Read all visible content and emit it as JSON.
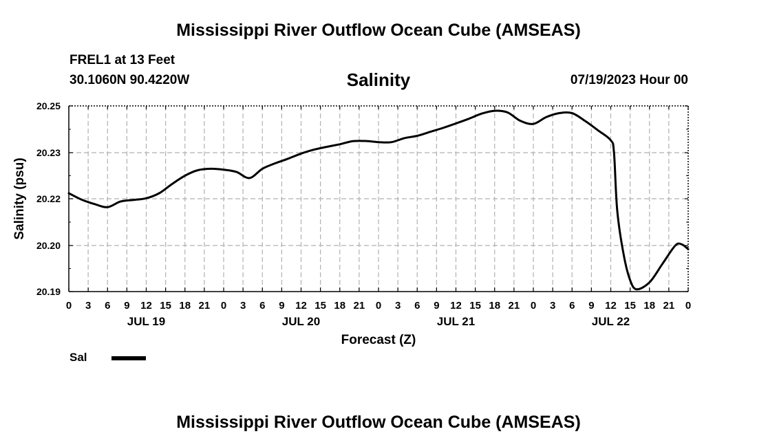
{
  "header": {
    "title": "Mississippi River Outflow Ocean Cube (AMSEAS)",
    "station": "FREL1 at 13 Feet",
    "coords": "30.1060N  90.4220W",
    "variable": "Salinity",
    "run": "07/19/2023 Hour 00"
  },
  "footer": {
    "title": "Mississippi River Outflow Ocean Cube (AMSEAS)"
  },
  "legend": {
    "label": "Sal"
  },
  "chart_data": {
    "type": "line",
    "title": "Salinity",
    "xlabel": "Forecast (Z)",
    "ylabel": "Salinity (psu)",
    "ylim": [
      20.19,
      20.25
    ],
    "y_ticks": [
      20.19,
      20.2,
      20.22,
      20.23,
      20.25
    ],
    "y_tick_labels": [
      "20.19",
      "20.20",
      "20.22",
      "20.23",
      "20.25"
    ],
    "x_range_hours": [
      0,
      96
    ],
    "x_tick_labels": [
      "0",
      "3",
      "6",
      "9",
      "12",
      "15",
      "18",
      "21",
      "0",
      "3",
      "6",
      "9",
      "12",
      "15",
      "18",
      "21",
      "0",
      "3",
      "6",
      "9",
      "12",
      "15",
      "18",
      "21",
      "0",
      "3",
      "6",
      "9",
      "12",
      "15",
      "18",
      "21",
      "0"
    ],
    "day_labels": [
      {
        "label": "JUL 19",
        "hour": 12
      },
      {
        "label": "JUL 20",
        "hour": 36
      },
      {
        "label": "JUL 21",
        "hour": 60
      },
      {
        "label": "JUL 22",
        "hour": 84
      }
    ],
    "grid": true,
    "series": [
      {
        "name": "Sal",
        "color": "#000000",
        "x": [
          0,
          2,
          4,
          6,
          8,
          10,
          12,
          14,
          16,
          18,
          20,
          22,
          24,
          26,
          28,
          30,
          32,
          34,
          36,
          38,
          40,
          42,
          44,
          46,
          48,
          50,
          52,
          54,
          56,
          58,
          60,
          62,
          64,
          66,
          68,
          70,
          72,
          74,
          76,
          78,
          80,
          82,
          84,
          84.5,
          85,
          86,
          87,
          88,
          90,
          92,
          94,
          95,
          96
        ],
        "y": [
          20.2212,
          20.2196,
          20.2177,
          20.2164,
          20.2188,
          20.2195,
          20.2201,
          20.2212,
          20.2232,
          20.225,
          20.2262,
          20.2265,
          20.2263,
          20.2258,
          20.2245,
          20.2265,
          20.2277,
          20.2287,
          20.2298,
          20.2313,
          20.2325,
          20.2336,
          20.2349,
          20.235,
          20.2345,
          20.2345,
          20.2362,
          20.2372,
          20.2389,
          20.2406,
          20.2425,
          20.2445,
          20.2467,
          20.2479,
          20.2472,
          20.2436,
          20.2423,
          20.2452,
          20.2469,
          20.2469,
          20.2436,
          20.2396,
          20.2353,
          20.23,
          20.215,
          20.198,
          20.1925,
          20.1905,
          20.192,
          20.196,
          20.2,
          20.2005,
          20.1992
        ]
      }
    ]
  }
}
